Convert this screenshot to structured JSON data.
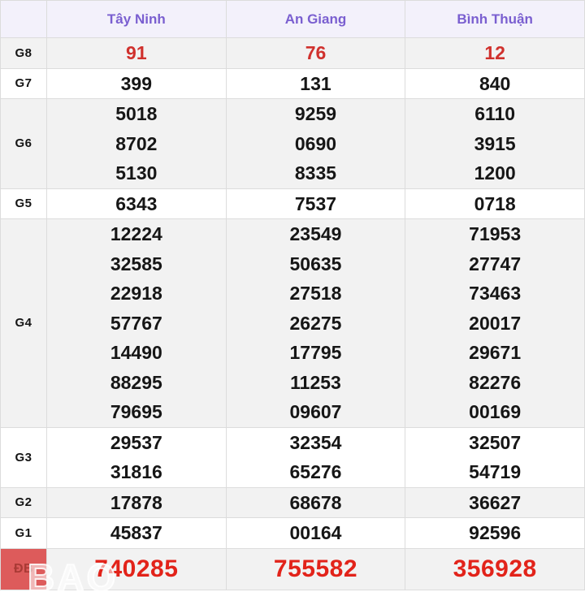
{
  "table": {
    "columns": [
      "Tây Ninh",
      "An Giang",
      "Bình Thuận"
    ],
    "rows": [
      {
        "label": "G8",
        "type": "g8",
        "shade": "gray",
        "cols": [
          [
            "91"
          ],
          [
            "76"
          ],
          [
            "12"
          ]
        ]
      },
      {
        "label": "G7",
        "type": "normal",
        "shade": "white",
        "cols": [
          [
            "399"
          ],
          [
            "131"
          ],
          [
            "840"
          ]
        ]
      },
      {
        "label": "G6",
        "type": "normal",
        "shade": "gray",
        "cols": [
          [
            "5018",
            "8702",
            "5130"
          ],
          [
            "9259",
            "0690",
            "8335"
          ],
          [
            "6110",
            "3915",
            "1200"
          ]
        ]
      },
      {
        "label": "G5",
        "type": "normal",
        "shade": "white",
        "cols": [
          [
            "6343"
          ],
          [
            "7537"
          ],
          [
            "0718"
          ]
        ]
      },
      {
        "label": "G4",
        "type": "normal",
        "shade": "gray",
        "cols": [
          [
            "12224",
            "32585",
            "22918",
            "57767",
            "14490",
            "88295",
            "79695"
          ],
          [
            "23549",
            "50635",
            "27518",
            "26275",
            "17795",
            "11253",
            "09607"
          ],
          [
            "71953",
            "27747",
            "73463",
            "20017",
            "29671",
            "82276",
            "00169"
          ]
        ]
      },
      {
        "label": "G3",
        "type": "normal",
        "shade": "white",
        "cols": [
          [
            "29537",
            "31816"
          ],
          [
            "32354",
            "65276"
          ],
          [
            "32507",
            "54719"
          ]
        ]
      },
      {
        "label": "G2",
        "type": "normal",
        "shade": "gray",
        "cols": [
          [
            "17878"
          ],
          [
            "68678"
          ],
          [
            "36627"
          ]
        ]
      },
      {
        "label": "G1",
        "type": "normal",
        "shade": "white",
        "cols": [
          [
            "45837"
          ],
          [
            "00164"
          ],
          [
            "92596"
          ]
        ]
      },
      {
        "label": "ĐB",
        "type": "db",
        "shade": "gray",
        "cols": [
          [
            "740285"
          ],
          [
            "755582"
          ],
          [
            "356928"
          ]
        ]
      }
    ]
  },
  "watermark": "BAO",
  "colors": {
    "header_bg": "#f3f1fb",
    "header_text": "#7a5fd0",
    "row_gray": "#f2f2f2",
    "row_white": "#ffffff",
    "value_text": "#161616",
    "g8_value_red": "#d0312d",
    "db_value_red": "#e2231a",
    "db_label_bg": "#dd5b5b",
    "db_label_text": "#a93a35",
    "border": "#dcdcdc"
  }
}
